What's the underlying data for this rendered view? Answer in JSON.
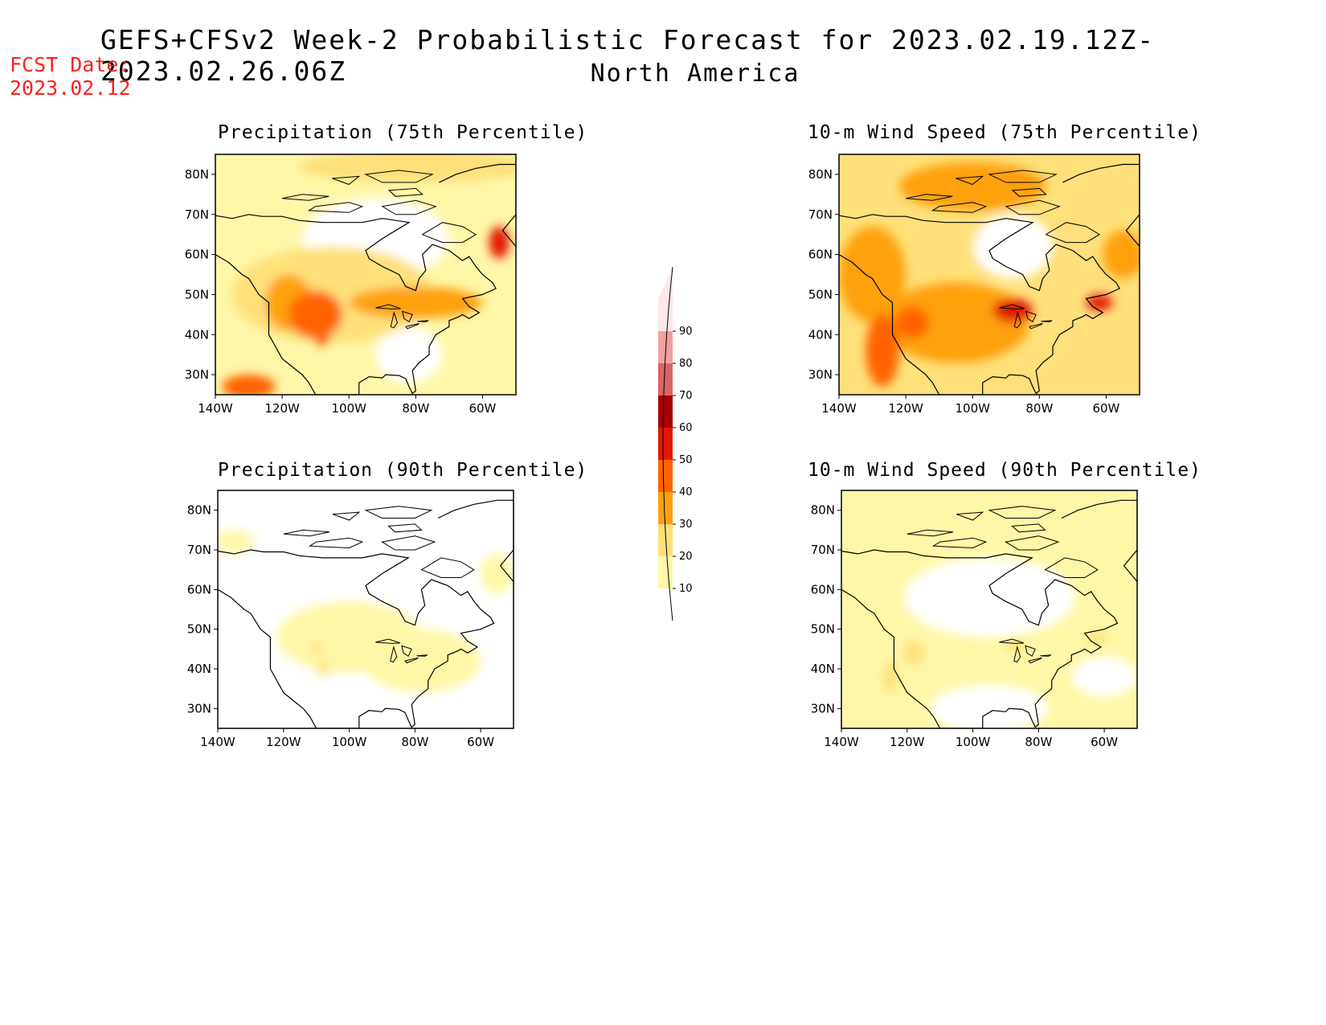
{
  "header": {
    "title": "GEFS+CFSv2 Week-2 Probabilistic Forecast for 2023.02.19.12Z-2023.02.26.06Z",
    "region": "North America",
    "fcst_label": "FCST Date:",
    "fcst_date": "2023.02.12"
  },
  "colors": {
    "levels": [
      10,
      20,
      30,
      40,
      50,
      60,
      70,
      80,
      90
    ],
    "fills": [
      "#fff7a8",
      "#ffe07a",
      "#ffa010",
      "#ff6400",
      "#e21800",
      "#a50000",
      "#dc6464",
      "#f0a0a0",
      "#fde6e6"
    ],
    "fcst_text": "#ff2020"
  },
  "axes": {
    "lon_ticks": [
      "140W",
      "120W",
      "100W",
      "80W",
      "60W"
    ],
    "lat_ticks": [
      "80N",
      "70N",
      "60N",
      "50N",
      "40N",
      "30N"
    ],
    "lon_range": [
      -140,
      -50
    ],
    "lat_range": [
      25,
      85
    ]
  },
  "panels": [
    {
      "id": "precip-75",
      "title": "Precipitation (75th Percentile)",
      "base": 10,
      "blobs": [
        {
          "lon": -55,
          "lat": 63,
          "rx": 3,
          "ry": 4,
          "level": 50
        },
        {
          "lon": -110,
          "lat": 45,
          "rx": 8,
          "ry": 6,
          "level": 40
        },
        {
          "lon": -108,
          "lat": 39,
          "rx": 2,
          "ry": 2,
          "level": 40
        },
        {
          "lon": -118,
          "lat": 48,
          "rx": 7,
          "ry": 7,
          "level": 30
        },
        {
          "lon": -80,
          "lat": 48,
          "rx": 20,
          "ry": 4,
          "level": 30
        },
        {
          "lon": -130,
          "lat": 27,
          "rx": 8,
          "ry": 3,
          "level": 40
        },
        {
          "lon": -105,
          "lat": 50,
          "rx": 30,
          "ry": 12,
          "level": 20
        },
        {
          "lon": -80,
          "lat": 82,
          "rx": 35,
          "ry": 4,
          "level": 20
        }
      ],
      "holes": [
        {
          "lon": -92,
          "lat": 64,
          "rx": 22,
          "ry": 10
        },
        {
          "lon": -82,
          "lat": 35,
          "rx": 10,
          "ry": 7
        }
      ]
    },
    {
      "id": "wind-75",
      "title": "10-m Wind Speed (75th Percentile)",
      "base": 20,
      "blobs": [
        {
          "lon": -127,
          "lat": 36,
          "rx": 5,
          "ry": 9,
          "level": 40
        },
        {
          "lon": -118,
          "lat": 43,
          "rx": 5,
          "ry": 4,
          "level": 40
        },
        {
          "lon": -88,
          "lat": 46,
          "rx": 6,
          "ry": 3,
          "level": 50
        },
        {
          "lon": -62,
          "lat": 48,
          "rx": 4,
          "ry": 2,
          "level": 50
        },
        {
          "lon": -105,
          "lat": 43,
          "rx": 22,
          "ry": 10,
          "level": 30
        },
        {
          "lon": -55,
          "lat": 60,
          "rx": 6,
          "ry": 6,
          "level": 30
        },
        {
          "lon": -100,
          "lat": 77,
          "rx": 22,
          "ry": 6,
          "level": 30
        },
        {
          "lon": -130,
          "lat": 55,
          "rx": 10,
          "ry": 12,
          "level": 30
        }
      ],
      "holes": [
        {
          "lon": -88,
          "lat": 62,
          "rx": 12,
          "ry": 8
        }
      ]
    },
    {
      "id": "precip-90",
      "title": "Precipitation (90th Percentile)",
      "base": 0,
      "blobs": [
        {
          "lon": -100,
          "lat": 48,
          "rx": 22,
          "ry": 9,
          "level": 10
        },
        {
          "lon": -78,
          "lat": 42,
          "rx": 18,
          "ry": 8,
          "level": 10
        },
        {
          "lon": -55,
          "lat": 64,
          "rx": 5,
          "ry": 5,
          "level": 10
        },
        {
          "lon": -135,
          "lat": 72,
          "rx": 6,
          "ry": 3,
          "level": 10
        },
        {
          "lon": -110,
          "lat": 45,
          "rx": 1.5,
          "ry": 1.5,
          "level": 20
        },
        {
          "lon": -108,
          "lat": 40,
          "rx": 1.5,
          "ry": 2,
          "level": 20
        }
      ],
      "holes": []
    },
    {
      "id": "wind-90",
      "title": "10-m Wind Speed (90th Percentile)",
      "base": 10,
      "blobs": [
        {
          "lon": -118,
          "lat": 44,
          "rx": 3,
          "ry": 3,
          "level": 20
        },
        {
          "lon": -87,
          "lat": 46,
          "rx": 3,
          "ry": 1.5,
          "level": 20
        },
        {
          "lon": -62,
          "lat": 48,
          "rx": 3,
          "ry": 1.5,
          "level": 20
        },
        {
          "lon": -125,
          "lat": 38,
          "rx": 2,
          "ry": 4,
          "level": 20
        }
      ],
      "holes": [
        {
          "lon": -95,
          "lat": 58,
          "rx": 26,
          "ry": 10
        },
        {
          "lon": -95,
          "lat": 30,
          "rx": 18,
          "ry": 6
        },
        {
          "lon": -60,
          "lat": 38,
          "rx": 10,
          "ry": 5
        }
      ]
    }
  ]
}
